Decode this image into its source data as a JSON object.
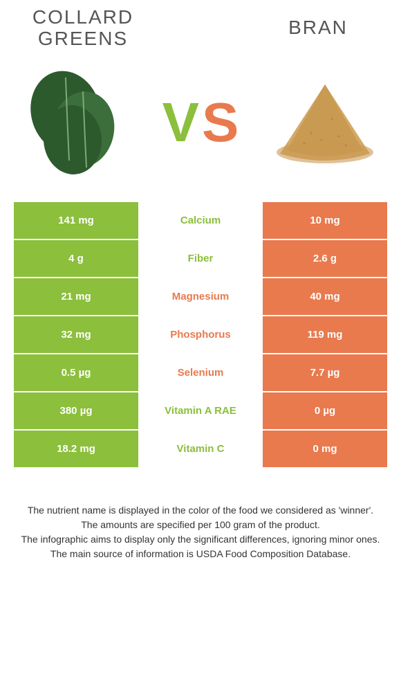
{
  "foods": {
    "left": {
      "name": "COLLARD GREENS",
      "color": "#8BBF3C"
    },
    "right": {
      "name": "BRAN",
      "color": "#E87A4E"
    }
  },
  "vs_text": {
    "v": "V",
    "s": "S"
  },
  "table": {
    "rows": [
      {
        "nutrient": "Calcium",
        "left": "141 mg",
        "right": "10 mg",
        "winner": "left"
      },
      {
        "nutrient": "Fiber",
        "left": "4 g",
        "right": "2.6 g",
        "winner": "left"
      },
      {
        "nutrient": "Magnesium",
        "left": "21 mg",
        "right": "40 mg",
        "winner": "right"
      },
      {
        "nutrient": "Phosphorus",
        "left": "32 mg",
        "right": "119 mg",
        "winner": "right"
      },
      {
        "nutrient": "Selenium",
        "left": "0.5 µg",
        "right": "7.7 µg",
        "winner": "right"
      },
      {
        "nutrient": "Vitamin A RAE",
        "left": "380 µg",
        "right": "0 µg",
        "winner": "left"
      },
      {
        "nutrient": "Vitamin C",
        "left": "18.2 mg",
        "right": "0 mg",
        "winner": "left"
      }
    ]
  },
  "footnotes": [
    "The nutrient name is displayed in the color of the food we considered as 'winner'.",
    "The amounts are specified per 100 gram of the product.",
    "The infographic aims to display only the significant differences, ignoring minor ones.",
    "The main source of information is USDA Food Composition Database."
  ],
  "colors": {
    "left_bg": "#8BBF3C",
    "right_bg": "#E87A4E",
    "green_text": "#8BBF3C",
    "orange_text": "#E87A4E"
  }
}
